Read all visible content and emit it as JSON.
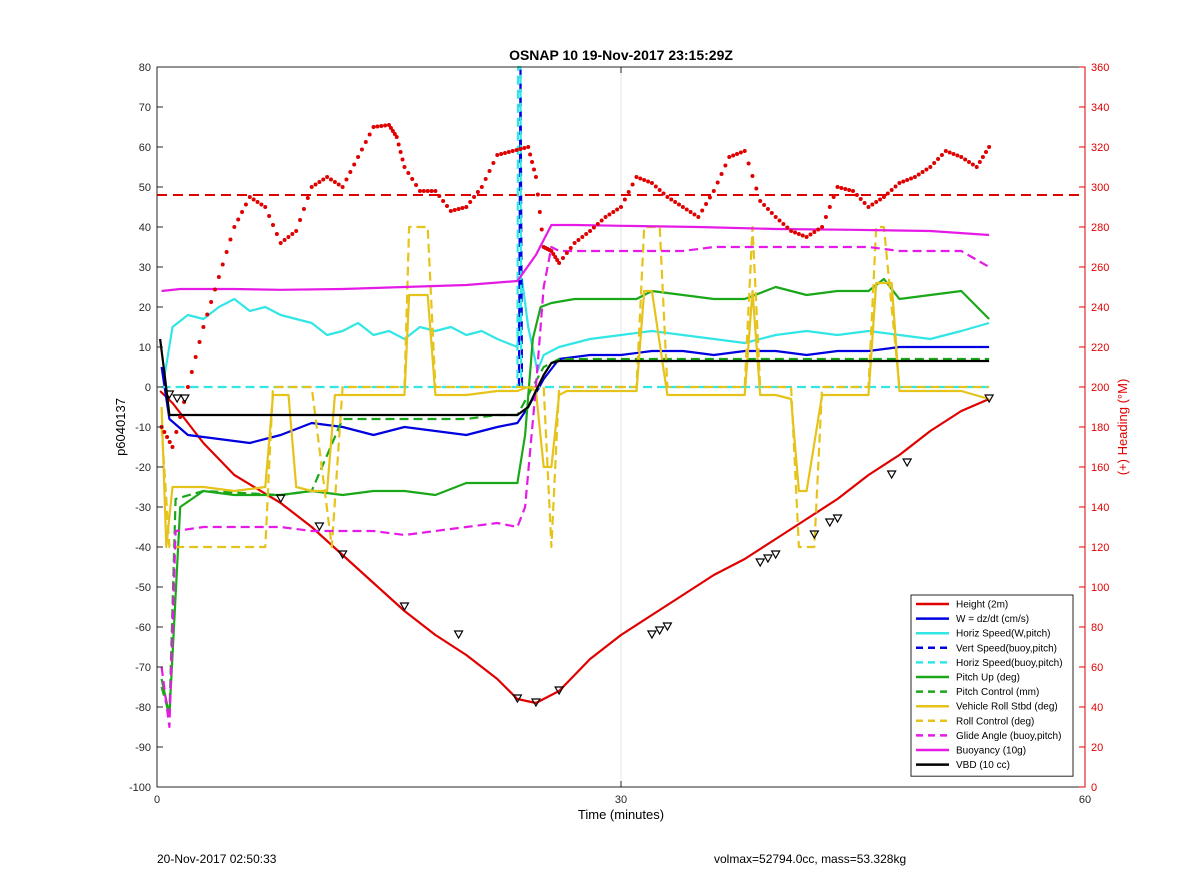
{
  "footer": {
    "left": "20-Nov-2017 02:50:33",
    "right": "volmax=52794.0cc, mass=53.328kg"
  },
  "colors": {
    "red": "#e00000",
    "blue": "#0000e0",
    "cyan": "#33e6e6",
    "green": "#1aa81a",
    "yellow": "#e6c31a",
    "magenta": "#e61ae6",
    "black": "#000000",
    "heading": "#e00000"
  },
  "chart_data": {
    "type": "line",
    "title": "OSNAP 10 19-Nov-2017 23:15:29Z",
    "xlabel": "Time (minutes)",
    "ylabel": "p6040137",
    "y2label": "(+) Heading (°M)",
    "xlim": [
      0,
      60
    ],
    "ylim": [
      -100,
      80
    ],
    "y2lim": [
      0,
      360
    ],
    "xticks": [
      0,
      30,
      60
    ],
    "yticks": [
      -100,
      -90,
      -80,
      -70,
      -60,
      -50,
      -40,
      -30,
      -20,
      -10,
      0,
      10,
      20,
      30,
      40,
      50,
      60,
      70,
      80
    ],
    "y2ticks": [
      0,
      20,
      40,
      60,
      80,
      100,
      120,
      140,
      160,
      180,
      200,
      220,
      240,
      260,
      280,
      300,
      320,
      340,
      360
    ],
    "grid": "x-only",
    "legend_position": "bottom-right",
    "series": [
      {
        "name": "Height (2m)",
        "color": "red",
        "style": "solid",
        "x": [
          0.2,
          1,
          3,
          5,
          8,
          10,
          12,
          14,
          16,
          18,
          20,
          22,
          23.3,
          24.5,
          26,
          28,
          30,
          32,
          34,
          36,
          38,
          40,
          42,
          44,
          46,
          48,
          50,
          52,
          53.8
        ],
        "y": [
          -1,
          -4,
          -14,
          -22,
          -29,
          -35,
          -42,
          -49,
          -56,
          -62,
          -67,
          -73,
          -78,
          -79,
          -76,
          -68,
          -62,
          -57,
          -52,
          -47,
          -43,
          -38,
          -33,
          -28,
          -22,
          -17,
          -11,
          -6,
          -3
        ]
      },
      {
        "name": "W = dz/dt (cm/s)",
        "color": "blue",
        "style": "solid",
        "x": [
          0.3,
          0.8,
          2,
          4,
          6,
          8,
          10,
          12,
          14,
          16,
          18,
          20,
          22,
          23.3,
          24,
          25,
          26,
          28,
          30,
          32,
          34,
          36,
          38,
          40,
          42,
          44,
          46,
          48,
          50,
          52,
          53.8
        ],
        "y": [
          5,
          -8,
          -12,
          -13,
          -14,
          -12,
          -9,
          -10,
          -12,
          -10,
          -11,
          -12,
          -10,
          -9,
          -5,
          2,
          7,
          8,
          8,
          9,
          9,
          8,
          9,
          9,
          8,
          9,
          9,
          10,
          10,
          10,
          10
        ]
      },
      {
        "name": "Horiz Speed(W,pitch)",
        "color": "cyan",
        "style": "solid",
        "x": [
          0.5,
          1,
          2,
          3,
          4,
          5,
          6,
          7,
          8,
          9,
          10,
          11,
          12,
          13,
          14,
          15,
          16,
          17,
          18,
          19,
          20,
          21,
          22,
          23.3,
          23.6,
          24,
          24.6,
          25,
          26,
          28,
          30,
          32,
          34,
          36,
          38,
          40,
          42,
          44,
          46,
          48,
          50,
          52,
          53.8
        ],
        "y": [
          3,
          15,
          18,
          17,
          20,
          22,
          19,
          20,
          18,
          17,
          16,
          13,
          14,
          16,
          13,
          14,
          12,
          15,
          14,
          15,
          13,
          14,
          12,
          10,
          27,
          15,
          4,
          8,
          10,
          12,
          13,
          14,
          13,
          12,
          11,
          13,
          14,
          13,
          14,
          13,
          12,
          14,
          16
        ]
      },
      {
        "name": "Vert Speed(buoy,pitch)",
        "color": "blue",
        "style": "dashed",
        "x": [
          23.4,
          23.5,
          23.6
        ],
        "y": [
          0,
          80,
          0
        ]
      },
      {
        "name": "Horiz Speed(buoy,pitch)",
        "color": "cyan",
        "style": "dashed",
        "x": [
          0.3,
          23.3,
          23.35,
          23.5,
          23.55,
          24,
          26,
          53.8
        ],
        "y": [
          0,
          0,
          80,
          80,
          0,
          0,
          0,
          0
        ]
      },
      {
        "name": "Pitch Up (deg)",
        "color": "green",
        "style": "solid",
        "x": [
          0.3,
          0.8,
          1.5,
          3,
          5,
          8,
          10,
          12,
          14,
          16,
          18,
          20,
          22,
          23.3,
          23.8,
          24.3,
          24.8,
          25.5,
          27,
          29,
          31,
          32,
          34,
          36,
          38,
          40,
          42,
          44,
          46,
          47,
          48,
          50,
          52,
          53.8
        ],
        "y": [
          -73,
          -82,
          -30,
          -26,
          -27,
          -27,
          -26,
          -27,
          -26,
          -26,
          -27,
          -24,
          -24,
          -24,
          -12,
          12,
          20,
          21,
          22,
          22,
          22,
          24,
          23,
          22,
          22,
          25,
          23,
          24,
          24,
          27,
          22,
          23,
          24,
          17
        ]
      },
      {
        "name": "Pitch Control (mm)",
        "color": "green",
        "style": "dashed",
        "x": [
          0.3,
          0.8,
          1.2,
          3,
          8,
          10,
          12,
          16,
          20,
          22,
          23.3,
          24,
          25,
          26,
          30,
          35,
          40,
          45,
          50,
          53.8
        ],
        "y": [
          -75,
          -82,
          -28,
          -26,
          -27,
          -26,
          -8,
          -8,
          -8,
          -7,
          -7,
          -2,
          5,
          7,
          7,
          7,
          7,
          7,
          7,
          7
        ]
      },
      {
        "name": "Vehicle Roll Stbd (deg)",
        "color": "yellow",
        "style": "solid",
        "x": [
          0.3,
          0.6,
          1,
          3,
          5,
          7,
          7.5,
          8.5,
          9,
          10,
          11,
          11.5,
          12,
          14,
          16,
          16.3,
          17.5,
          18,
          20,
          22,
          23.3,
          24,
          24.5,
          25,
          25.5,
          26,
          26.5,
          28,
          30,
          31,
          31.5,
          32,
          33,
          34,
          35,
          38,
          38.5,
          39,
          40,
          41,
          41.5,
          42,
          43,
          44,
          46,
          46.5,
          47.5,
          48,
          50,
          52,
          53.8
        ],
        "y": [
          -5,
          -40,
          -25,
          -25,
          -26,
          -25,
          -2,
          -2,
          -25,
          -26,
          -26,
          -2,
          -2,
          -2,
          -2,
          23,
          23,
          -2,
          -2,
          -1,
          -1,
          0,
          -1,
          -20,
          -20,
          -2,
          -1,
          -1,
          -1,
          -1,
          24,
          24,
          -2,
          -2,
          -2,
          -2,
          24,
          -2,
          -2,
          -3,
          -26,
          -26,
          -2,
          -2,
          -2,
          26,
          26,
          -1,
          -1,
          -1,
          -3
        ]
      },
      {
        "name": "Roll Control (deg)",
        "color": "yellow",
        "style": "dashed",
        "x": [
          0.3,
          0.8,
          3,
          7,
          7.5,
          10,
          11.3,
          12,
          16,
          16.3,
          17.5,
          18,
          22,
          23.3,
          24,
          25,
          25.5,
          26,
          27,
          28,
          30,
          31,
          31.5,
          32.5,
          33,
          35,
          37,
          38,
          38.5,
          39,
          41,
          41.5,
          42.5,
          43,
          45,
          46,
          46.5,
          47,
          48,
          52,
          53.8
        ],
        "y": [
          -10,
          -40,
          -40,
          -40,
          0,
          0,
          -40,
          0,
          0,
          40,
          40,
          0,
          0,
          0,
          0,
          0,
          -40,
          0,
          0,
          0,
          0,
          0,
          40,
          40,
          0,
          0,
          0,
          0,
          40,
          0,
          0,
          -40,
          -40,
          0,
          0,
          0,
          40,
          40,
          0,
          0,
          0
        ]
      },
      {
        "name": "Glide Angle (buoy,pitch)",
        "color": "magenta",
        "style": "dashed",
        "x": [
          0.3,
          0.8,
          1.2,
          3,
          5,
          8,
          10,
          12,
          14,
          16,
          18,
          20,
          22,
          23.3,
          23.8,
          24.5,
          25,
          25.5,
          26,
          28,
          30,
          32,
          34,
          36,
          38,
          40,
          42,
          44,
          46,
          48,
          50,
          52,
          53.8
        ],
        "y": [
          -70,
          -85,
          -36,
          -35,
          -35,
          -35,
          -36,
          -36,
          -36,
          -37,
          -36,
          -35,
          -34,
          -35,
          -30,
          0,
          25,
          35,
          34,
          34,
          34,
          34,
          34,
          35,
          35,
          35,
          35,
          35,
          35,
          34,
          34,
          34,
          30
        ]
      },
      {
        "name": "Buoyancy (10g)",
        "color": "magenta",
        "style": "solid",
        "x": [
          0.3,
          1.5,
          5,
          8,
          12,
          16,
          20,
          23.3,
          24.5,
          25.5,
          27,
          30,
          35,
          40,
          45,
          50,
          53.8
        ],
        "y": [
          24,
          24.5,
          24.5,
          24.3,
          24.5,
          25,
          25.5,
          26.5,
          33,
          40.5,
          40.5,
          40.3,
          40,
          39.5,
          39.3,
          39,
          38
        ]
      },
      {
        "name": "VBD (10 cc)",
        "color": "black",
        "style": "solid",
        "x": [
          0.2,
          0.5,
          0.8,
          2,
          5,
          10,
          15,
          20,
          23.3,
          24,
          24.5,
          25,
          25.5,
          26,
          27,
          30,
          35,
          40,
          45,
          50,
          53.8
        ],
        "y": [
          12,
          3,
          -7,
          -7,
          -7,
          -7,
          -7,
          -7,
          -7,
          -5,
          -1,
          3,
          6,
          6.5,
          6.5,
          6.5,
          6.5,
          6.5,
          6.5,
          6.5,
          6.5
        ]
      }
    ],
    "heading_series": {
      "name": "Heading",
      "color": "red",
      "style": "dotted",
      "axis": "right",
      "x": [
        0.3,
        1,
        2,
        3,
        4,
        5,
        6,
        7,
        8,
        9,
        10,
        11,
        12,
        13,
        14,
        15,
        15.5,
        16,
        17,
        18,
        19,
        20,
        21,
        22,
        23,
        24,
        24.5,
        25,
        25.5,
        26,
        27,
        28,
        29,
        30,
        31,
        32,
        33,
        34,
        35,
        36,
        37,
        38,
        39,
        40,
        41,
        42,
        43,
        44,
        45,
        46,
        47,
        48,
        49,
        50,
        51,
        52,
        53,
        53.8
      ],
      "y": [
        180,
        170,
        200,
        230,
        255,
        280,
        295,
        290,
        272,
        278,
        300,
        305,
        300,
        315,
        330,
        331,
        325,
        310,
        298,
        298,
        288,
        290,
        300,
        316,
        318,
        320,
        305,
        270,
        268,
        262,
        272,
        278,
        285,
        290,
        305,
        302,
        295,
        290,
        285,
        298,
        315,
        318,
        293,
        285,
        278,
        275,
        280,
        300,
        298,
        290,
        295,
        302,
        305,
        310,
        318,
        315,
        310,
        320
      ]
    },
    "reference_line": {
      "y2": 296,
      "color": "red",
      "style": "dashed"
    },
    "triangle_markers": {
      "x": [
        0.8,
        1.3,
        1.8,
        8,
        10.5,
        12,
        16,
        19.5,
        23.3,
        24.5,
        26,
        32,
        32.5,
        33,
        39,
        39.5,
        40,
        42.5,
        43.5,
        44,
        47.5,
        48.5,
        53.8
      ],
      "y": [
        -2,
        -3,
        -3,
        -28,
        -35,
        -42,
        -55,
        -62,
        -78,
        -79,
        -76,
        -62,
        -61,
        -60,
        -44,
        -43,
        -42,
        -37,
        -34,
        -33,
        -22,
        -19,
        -3
      ]
    }
  }
}
